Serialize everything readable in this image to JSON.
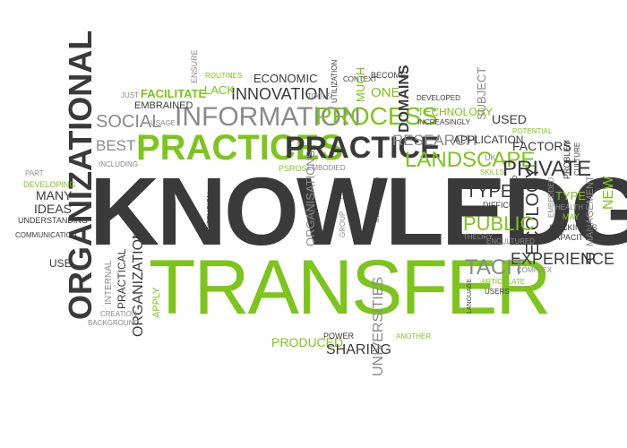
{
  "colors": {
    "green": "#7dc51b",
    "dark": "#3a3a3a",
    "gray": "#8a8a8a"
  },
  "words": [
    {
      "text": "KNOWLEDGE",
      "color": "dark"
    },
    {
      "text": "TRANSFER",
      "color": "green"
    },
    {
      "text": "ORGANIZATIONAL",
      "color": "dark"
    },
    {
      "text": "PRACTICES",
      "color": "green"
    },
    {
      "text": "PRACTICE",
      "color": "dark"
    },
    {
      "text": "INFORMATION",
      "color": "gray"
    },
    {
      "text": "PROCESS",
      "color": "green"
    },
    {
      "text": "SOCIAL",
      "color": "gray"
    },
    {
      "text": "BEST",
      "color": "gray"
    },
    {
      "text": "INNOVATION",
      "color": "dark"
    },
    {
      "text": "ECONOMIC",
      "color": "dark"
    },
    {
      "text": "FACILITATE",
      "color": "green"
    },
    {
      "text": "LACK",
      "color": "green"
    },
    {
      "text": "ROUTINES",
      "color": "green"
    },
    {
      "text": "ENSURE",
      "color": "gray"
    },
    {
      "text": "JUST",
      "color": "gray"
    },
    {
      "text": "EMBRAINED",
      "color": "dark"
    },
    {
      "text": "USAGE",
      "color": "gray"
    },
    {
      "text": "TOOLS",
      "color": "gray"
    },
    {
      "text": "UTILIZATION",
      "color": "dark"
    },
    {
      "text": "CONTEXT",
      "color": "dark"
    },
    {
      "text": "MUCH",
      "color": "green"
    },
    {
      "text": "BECOME",
      "color": "dark"
    },
    {
      "text": "ONE",
      "color": "green"
    },
    {
      "text": "DOMAINS",
      "color": "dark"
    },
    {
      "text": "DEVELOPED",
      "color": "dark"
    },
    {
      "text": "TECHNOLOGY",
      "color": "green"
    },
    {
      "text": "INCREASINGLY",
      "color": "dark"
    },
    {
      "text": "SUBJECT",
      "color": "gray"
    },
    {
      "text": "USED",
      "color": "dark"
    },
    {
      "text": "RESEARCH",
      "color": "gray"
    },
    {
      "text": "APPLICATION",
      "color": "dark"
    },
    {
      "text": "POTENTIAL",
      "color": "green"
    },
    {
      "text": "FACTORS",
      "color": "dark"
    },
    {
      "text": "LANDSCAPE",
      "color": "green"
    },
    {
      "text": "UK",
      "color": "gray"
    },
    {
      "text": "SKILLS",
      "color": "green"
    },
    {
      "text": "PRIVATE",
      "color": "dark"
    },
    {
      "text": "PROBLEM",
      "color": "dark"
    },
    {
      "text": "CULTURE",
      "color": "dark"
    },
    {
      "text": "NEW",
      "color": "green"
    },
    {
      "text": "INCLUDING",
      "color": "gray"
    },
    {
      "text": "PSROS",
      "color": "green"
    },
    {
      "text": "EMBODIED",
      "color": "gray"
    },
    {
      "text": "PART",
      "color": "gray"
    },
    {
      "text": "DEVELOPING",
      "color": "green"
    },
    {
      "text": "MANY",
      "color": "dark"
    },
    {
      "text": "IDEAS",
      "color": "dark"
    },
    {
      "text": "UNDERSTANDING",
      "color": "dark"
    },
    {
      "text": "COMMUNICATION",
      "color": "dark"
    },
    {
      "text": "USE",
      "color": "dark"
    },
    {
      "text": "DIFFUSION",
      "color": "dark"
    },
    {
      "text": "ORGANISATIONS",
      "color": "gray"
    },
    {
      "text": "GROUP",
      "color": "gray"
    },
    {
      "text": "E.G",
      "color": "dark"
    },
    {
      "text": "INDIVIDUALS",
      "color": "dark"
    },
    {
      "text": "TYPES",
      "color": "dark"
    },
    {
      "text": "DIFFICULT",
      "color": "dark"
    },
    {
      "text": "TRANSFERRED",
      "color": "dark"
    },
    {
      "text": "ECOLOGY",
      "color": "dark"
    },
    {
      "text": "EMBEDDED",
      "color": "gray"
    },
    {
      "text": "TYPE",
      "color": "green"
    },
    {
      "text": "HEALTH",
      "color": "gray"
    },
    {
      "text": "MAY",
      "color": "green"
    },
    {
      "text": "MANAGEMENT",
      "color": "gray"
    },
    {
      "text": "PUBLIC",
      "color": "green"
    },
    {
      "text": "THEORY",
      "color": "gray"
    },
    {
      "text": "STICKINESS",
      "color": "dark"
    },
    {
      "text": "CAPACITY",
      "color": "dark"
    },
    {
      "text": "ENCULTURED",
      "color": "gray"
    },
    {
      "text": "EXPERIENCE",
      "color": "dark"
    },
    {
      "text": "IP",
      "color": "dark"
    },
    {
      "text": "TACIT",
      "color": "gray"
    },
    {
      "text": "COMPLEX",
      "color": "gray"
    },
    {
      "text": "ARTICULATE",
      "color": "green"
    },
    {
      "text": "LANGUAGE",
      "color": "dark"
    },
    {
      "text": "USERS",
      "color": "dark"
    },
    {
      "text": "INTERNAL",
      "color": "gray"
    },
    {
      "text": "PRACTICAL",
      "color": "dark"
    },
    {
      "text": "ORGANIZATION",
      "color": "dark"
    },
    {
      "text": "APPLY",
      "color": "green"
    },
    {
      "text": "CREATION",
      "color": "gray"
    },
    {
      "text": "BACKGROUND",
      "color": "gray"
    },
    {
      "text": "PRODUCED",
      "color": "green"
    },
    {
      "text": "POWER",
      "color": "dark"
    },
    {
      "text": "SHARING",
      "color": "dark"
    },
    {
      "text": "UNIVERSITIES",
      "color": "gray"
    },
    {
      "text": "ANOTHER",
      "color": "green"
    }
  ]
}
